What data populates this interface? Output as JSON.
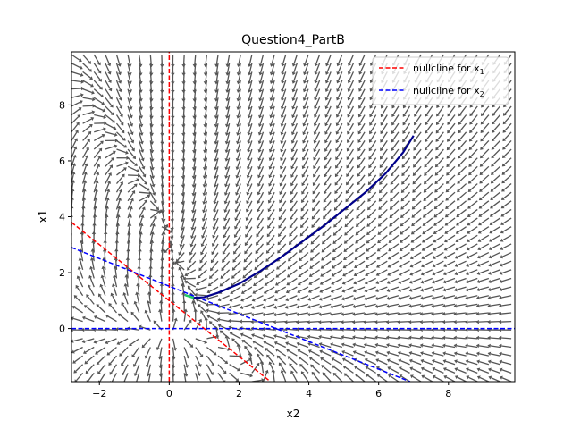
{
  "chart_data": {
    "type": "quiver",
    "title": "Question4_PartB",
    "xlabel": "x2",
    "ylabel": "x1",
    "xlim": [
      -2.8,
      9.9
    ],
    "ylim": [
      -1.9,
      9.9
    ],
    "xticks": [
      -2,
      0,
      2,
      4,
      6,
      8
    ],
    "yticks": [
      0,
      2,
      4,
      6,
      8
    ],
    "grid": false,
    "legend_position": "top-right",
    "vector_field": {
      "x_range": [
        -2.8,
        9.8
      ],
      "y_range": [
        -1.9,
        9.8
      ],
      "nx": 40,
      "ny": 39,
      "arrow_color": "#555555"
    },
    "series": [
      {
        "name": "nullcline for x1",
        "name_base": "nullcline for x",
        "name_sub": "1",
        "style": "dashed",
        "color": "#ff0000",
        "segments": [
          {
            "x": [
              0,
              0
            ],
            "y": [
              -1.9,
              9.9
            ]
          },
          {
            "x": [
              -2.8,
              2.9
            ],
            "y": [
              3.8,
              -1.9
            ]
          }
        ]
      },
      {
        "name": "nullcline for x2",
        "name_base": "nullcline for x",
        "name_sub": "2",
        "style": "dashed",
        "color": "#0000ff",
        "segments": [
          {
            "x": [
              -2.8,
              9.9
            ],
            "y": [
              0,
              0
            ]
          },
          {
            "x": [
              -2.8,
              6.9
            ],
            "y": [
              2.9,
              -1.9
            ]
          }
        ]
      }
    ],
    "trajectory": {
      "x": [
        0.45,
        0.7,
        1.0,
        1.4,
        2.0,
        2.6,
        3.2,
        3.8,
        4.4,
        5.0,
        5.6,
        6.2,
        6.7,
        7.0
      ],
      "y": [
        1.2,
        1.1,
        1.12,
        1.28,
        1.6,
        2.05,
        2.55,
        3.1,
        3.65,
        4.25,
        4.85,
        5.55,
        6.3,
        6.9
      ],
      "color": "#00008b"
    }
  }
}
